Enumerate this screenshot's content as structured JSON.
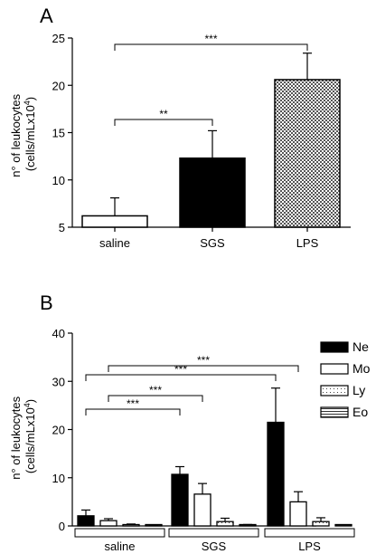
{
  "chart_data": [
    {
      "panel": "A",
      "type": "bar",
      "ylabel_line1": "n° of leukocytes",
      "ylabel_line2": "(cells/mLx10",
      "ylabel_sup": "4",
      "ylabel_close": ")",
      "ylim": [
        5,
        25
      ],
      "yticks": [
        5,
        10,
        15,
        20,
        25
      ],
      "categories": [
        "saline",
        "SGS",
        "LPS"
      ],
      "values": [
        6.2,
        12.3,
        20.6
      ],
      "errors": [
        1.9,
        2.9,
        2.8
      ],
      "fills": [
        "white",
        "black",
        "checker"
      ],
      "significance": [
        {
          "from": "saline",
          "to": "SGS",
          "label": "**"
        },
        {
          "from": "saline",
          "to": "LPS",
          "label": "***"
        }
      ]
    },
    {
      "panel": "B",
      "type": "bar",
      "ylabel_line1": "n° of leukocytes",
      "ylabel_line2": "(cells/mLx10",
      "ylabel_sup": "4",
      "ylabel_close": ")",
      "ylim": [
        0,
        40
      ],
      "yticks": [
        0,
        10,
        20,
        30,
        40
      ],
      "categories": [
        "saline",
        "SGS",
        "LPS"
      ],
      "series": [
        {
          "name": "Ne",
          "fill": "black",
          "values": [
            2.1,
            10.7,
            21.5
          ],
          "errors": [
            1.2,
            1.6,
            7.1
          ]
        },
        {
          "name": "Mo",
          "fill": "white",
          "values": [
            1.1,
            6.6,
            5.0
          ],
          "errors": [
            0.4,
            2.2,
            2.1
          ]
        },
        {
          "name": "Ly",
          "fill": "dotted",
          "values": [
            0.2,
            0.9,
            0.9
          ],
          "errors": [
            0.2,
            0.7,
            0.8
          ]
        },
        {
          "name": "Eo",
          "fill": "hstripe",
          "values": [
            0.1,
            0.2,
            0.0
          ],
          "errors": [
            0.1,
            0.1,
            0.0
          ]
        }
      ],
      "significance": [
        {
          "from": "saline Ne",
          "to": "SGS Ne",
          "label": "***"
        },
        {
          "from": "saline Mo",
          "to": "SGS Mo",
          "label": "***"
        },
        {
          "from": "saline Ne",
          "to": "LPS Ne",
          "label": "***"
        },
        {
          "from": "saline Mo",
          "to": "LPS Mo",
          "label": "***"
        }
      ],
      "legend_position": "right"
    }
  ]
}
